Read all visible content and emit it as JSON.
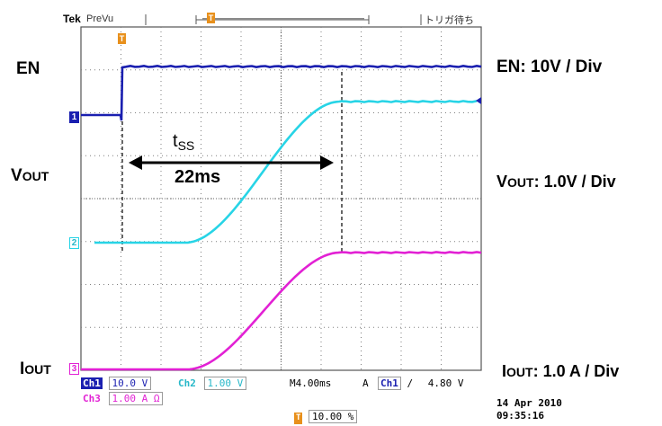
{
  "header": {
    "brand": "Tek",
    "mode": "PreVu",
    "trigger_status": "トリガ待ち"
  },
  "labels": {
    "en": "EN",
    "vout_main": "V",
    "vout_sub": "OUT",
    "iout_main": "I",
    "iout_sub": "OUT",
    "en_scale": "EN: 10V / Div",
    "vout_scale_main": "V",
    "vout_scale_sub": "OUT",
    "vout_scale_rest": ": 1.0V / Div",
    "iout_scale_main": "I",
    "iout_scale_sub": "OUT",
    "iout_scale_rest": ": 1.0 A / Div"
  },
  "annotation": {
    "t_main": "t",
    "t_sub": "SS",
    "duration": "22ms"
  },
  "markers": {
    "ch1": "1",
    "ch2": "2",
    "ch3": "3",
    "trigger": "T"
  },
  "status_bar": {
    "ch1_tag": "Ch1",
    "ch1_scale": "10.0 V",
    "ch2_tag": "Ch2",
    "ch2_scale": "1.00 V",
    "timebase": "M4.00ms",
    "acq": "A",
    "trig_source": "Ch1",
    "trig_slope": "∕",
    "trig_level": "4.80 V",
    "ch3_tag": "Ch3",
    "ch3_scale": "1.00 A Ω",
    "trig_position": "10.00 %",
    "date": "14 Apr  2010",
    "time": "09:35:16"
  },
  "colors": {
    "ch1": "#1a1fb0",
    "ch2": "#27d4e6",
    "ch3": "#e221d4",
    "grid": "#7f7f7f",
    "trigger": "#e8901c"
  }
}
